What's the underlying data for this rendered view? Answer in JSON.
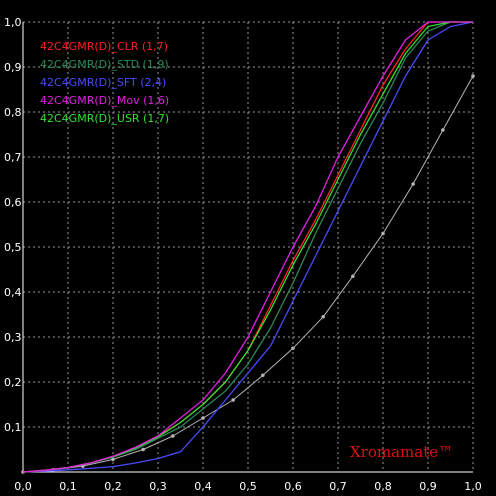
{
  "chart_data": {
    "type": "line",
    "xlim": [
      0,
      1
    ],
    "ylim": [
      0,
      1
    ],
    "grid": true,
    "legend_position": "top-left",
    "x_ticks": [
      "0,0",
      "0,1",
      "0,2",
      "0,3",
      "0,4",
      "0,5",
      "0,6",
      "0,7",
      "0,8",
      "0,9",
      "1,0"
    ],
    "y_ticks": [
      "0,1",
      "0,2",
      "0,3",
      "0,4",
      "0,5",
      "0,6",
      "0,7",
      "0,8",
      "0,9",
      "1,0"
    ],
    "watermark": "Xromamate™",
    "reference": {
      "color": "#b4b4b4",
      "x": [
        0.0,
        0.067,
        0.133,
        0.2,
        0.267,
        0.333,
        0.4,
        0.467,
        0.533,
        0.6,
        0.667,
        0.733,
        0.8,
        0.867,
        0.933,
        1.0
      ],
      "y": [
        0.0,
        0.005,
        0.013,
        0.028,
        0.05,
        0.08,
        0.12,
        0.16,
        0.215,
        0.275,
        0.345,
        0.435,
        0.53,
        0.64,
        0.76,
        0.88
      ]
    },
    "series": [
      {
        "name": "42C4GMR(D)_CLR (1,7)",
        "color": "#ff2020",
        "x": [
          0.0,
          0.05,
          0.1,
          0.15,
          0.2,
          0.25,
          0.3,
          0.35,
          0.4,
          0.45,
          0.5,
          0.55,
          0.6,
          0.65,
          0.7,
          0.75,
          0.8,
          0.85,
          0.9,
          0.95,
          1.0
        ],
        "y": [
          0.0,
          0.004,
          0.01,
          0.02,
          0.035,
          0.055,
          0.08,
          0.11,
          0.15,
          0.2,
          0.27,
          0.37,
          0.47,
          0.56,
          0.66,
          0.76,
          0.86,
          0.94,
          1.0,
          1.0,
          1.0
        ]
      },
      {
        "name": "42C4GMR(D)_STD (1,9)",
        "color": "#2a8a5a",
        "x": [
          0.0,
          0.05,
          0.1,
          0.15,
          0.2,
          0.25,
          0.3,
          0.35,
          0.4,
          0.45,
          0.5,
          0.55,
          0.6,
          0.65,
          0.7,
          0.75,
          0.8,
          0.85,
          0.9,
          0.95,
          1.0
        ],
        "y": [
          0.0,
          0.004,
          0.01,
          0.02,
          0.033,
          0.05,
          0.075,
          0.1,
          0.14,
          0.18,
          0.24,
          0.32,
          0.42,
          0.53,
          0.63,
          0.73,
          0.82,
          0.92,
          0.98,
          1.0,
          1.0
        ]
      },
      {
        "name": "42C4GMR(D)_SFT (2,4)",
        "color": "#4a4aff",
        "x": [
          0.0,
          0.05,
          0.1,
          0.15,
          0.2,
          0.25,
          0.3,
          0.35,
          0.4,
          0.45,
          0.5,
          0.55,
          0.6,
          0.65,
          0.7,
          0.75,
          0.8,
          0.85,
          0.9,
          0.95,
          1.0
        ],
        "y": [
          0.0,
          0.002,
          0.005,
          0.008,
          0.012,
          0.02,
          0.03,
          0.045,
          0.1,
          0.16,
          0.22,
          0.28,
          0.38,
          0.48,
          0.58,
          0.68,
          0.78,
          0.88,
          0.96,
          0.99,
          1.0
        ]
      },
      {
        "name": "42C4GMR(D)_Mov (1,6)",
        "color": "#e020e0",
        "x": [
          0.0,
          0.05,
          0.1,
          0.15,
          0.2,
          0.25,
          0.3,
          0.35,
          0.4,
          0.45,
          0.5,
          0.55,
          0.6,
          0.65,
          0.7,
          0.75,
          0.8,
          0.85,
          0.9,
          0.95,
          1.0
        ],
        "y": [
          0.0,
          0.004,
          0.01,
          0.02,
          0.035,
          0.055,
          0.08,
          0.12,
          0.16,
          0.22,
          0.3,
          0.4,
          0.5,
          0.59,
          0.7,
          0.79,
          0.88,
          0.96,
          1.0,
          1.0,
          1.0
        ]
      },
      {
        "name": "42C4GMR(D)_USR (1,7)",
        "color": "#30e030",
        "x": [
          0.0,
          0.05,
          0.1,
          0.15,
          0.2,
          0.25,
          0.3,
          0.35,
          0.4,
          0.45,
          0.5,
          0.55,
          0.6,
          0.65,
          0.7,
          0.75,
          0.8,
          0.85,
          0.9,
          0.95,
          1.0
        ],
        "y": [
          0.0,
          0.004,
          0.01,
          0.02,
          0.034,
          0.053,
          0.078,
          0.11,
          0.15,
          0.2,
          0.27,
          0.36,
          0.46,
          0.55,
          0.65,
          0.75,
          0.84,
          0.93,
          0.99,
          1.0,
          1.0
        ]
      }
    ]
  }
}
